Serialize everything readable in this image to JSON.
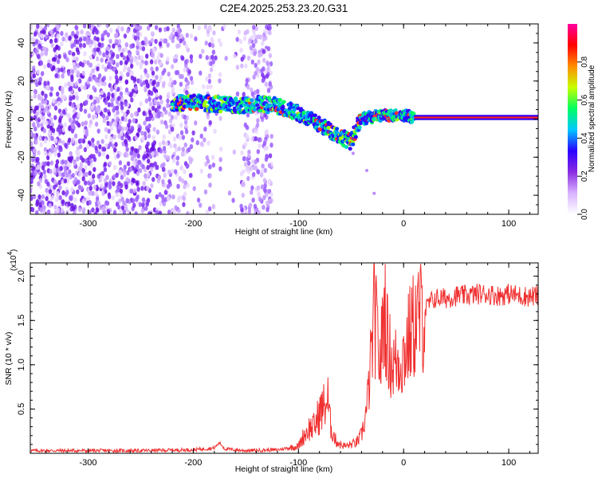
{
  "title": "C2E4.2025.253.23.20.G31",
  "chart_data": [
    {
      "type": "heatmap",
      "xlabel": "Height of straight line (km)",
      "ylabel": "Frequency (Hz)",
      "xlim": [
        -355,
        128
      ],
      "ylim": [
        -50,
        50
      ],
      "xticks": [
        -300,
        -200,
        -100,
        0,
        100
      ],
      "yticks": [
        -40,
        -20,
        0,
        20,
        40
      ],
      "xtick_labels": [
        "-300",
        "-200",
        "-100",
        "0",
        "100"
      ],
      "ytick_labels": [
        "-40",
        "-20",
        "0",
        "20",
        "40"
      ],
      "colorbar": {
        "label": "Normalized spectral amplitude",
        "range": [
          0,
          1
        ],
        "ticks": [
          "0.0",
          "0.2",
          "0.4",
          "0.6",
          "0.8"
        ],
        "tick_values": [
          0,
          0.2,
          0.4,
          0.6,
          0.8
        ],
        "colors": [
          "#ffffff",
          "#d9b3ff",
          "#8a2be2",
          "#2b00ff",
          "#00c8ff",
          "#00ff60",
          "#c8ff00",
          "#ff8c00",
          "#ff0000",
          "#ff00a0"
        ]
      },
      "centerline": {
        "x": [
          -220,
          -200,
          -180,
          -160,
          -140,
          -120,
          -100,
          -90,
          -80,
          -70,
          -60,
          -50,
          -45,
          -40,
          -30,
          -20,
          -10,
          0,
          10,
          50,
          100,
          128
        ],
        "y": [
          8,
          9,
          8,
          7,
          8,
          7,
          3,
          0,
          -3,
          -6,
          -9,
          -12,
          -5,
          0,
          1,
          2,
          2,
          2,
          1,
          1,
          1,
          1
        ]
      },
      "noise_region_x": [
        -355,
        -125
      ]
    },
    {
      "type": "line",
      "xlabel": "Height of straight line (km)",
      "ylabel": "SNR (10 * v/v)",
      "y_multiplier": "(x10",
      "y_multiplier_exp": "4",
      "xlim": [
        -355,
        128
      ],
      "ylim": [
        0,
        2.15
      ],
      "xticks": [
        -300,
        -200,
        -100,
        0,
        100
      ],
      "yticks": [
        0.5,
        1.0,
        1.5,
        2.0
      ],
      "xtick_labels": [
        "-300",
        "-200",
        "-100",
        "0",
        "100"
      ],
      "ytick_labels": [
        "0.5",
        "1.0",
        "1.5",
        "2.0"
      ],
      "series": [
        {
          "color": "#f03030",
          "x": [
            -355,
            -300,
            -250,
            -200,
            -180,
            -175,
            -170,
            -150,
            -120,
            -100,
            -95,
            -90,
            -85,
            -80,
            -75,
            -72,
            -70,
            -65,
            -60,
            -55,
            -50,
            -45,
            -40,
            -35,
            -32,
            -30,
            -28,
            -25,
            -22,
            -20,
            -18,
            -15,
            -10,
            -5,
            0,
            5,
            10,
            15,
            20,
            25,
            30,
            40,
            50,
            60,
            70,
            80,
            90,
            100,
            110,
            120,
            128
          ],
          "y": [
            0.03,
            0.03,
            0.03,
            0.04,
            0.06,
            0.12,
            0.05,
            0.03,
            0.04,
            0.08,
            0.2,
            0.28,
            0.3,
            0.45,
            0.55,
            0.6,
            0.35,
            0.15,
            0.1,
            0.08,
            0.1,
            0.12,
            0.2,
            0.5,
            0.9,
            1.2,
            1.6,
            1.3,
            1.0,
            1.4,
            1.7,
            1.2,
            1.0,
            1.05,
            1.1,
            1.3,
            1.45,
            1.55,
            1.6,
            1.7,
            1.75,
            1.75,
            1.78,
            1.78,
            1.8,
            1.8,
            1.78,
            1.8,
            1.78,
            1.77,
            1.78
          ]
        }
      ]
    }
  ]
}
